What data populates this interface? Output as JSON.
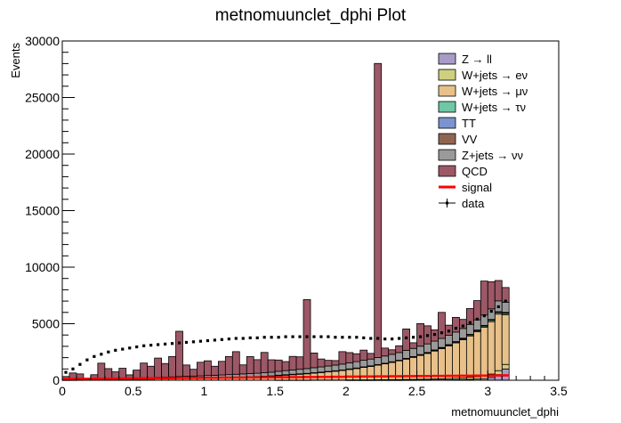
{
  "chart_data": {
    "type": "bar",
    "title": "metnomuunclet_dphi Plot",
    "xlabel": "metnomuunclet_dphi",
    "ylabel": "Events",
    "xlim": [
      0,
      3.5
    ],
    "ylim": [
      0,
      30000
    ],
    "x_ticks": [
      "0",
      "0.5",
      "1",
      "1.5",
      "2",
      "2.5",
      "3",
      "3.5"
    ],
    "y_ticks": [
      "0",
      "5000",
      "10000",
      "15000",
      "20000",
      "25000",
      "30000"
    ],
    "legend_position": "top-right",
    "bin_width": 0.05,
    "bins_lo": [
      0.0,
      0.05,
      0.1,
      0.15,
      0.2,
      0.25,
      0.3,
      0.35,
      0.4,
      0.45,
      0.5,
      0.55,
      0.6,
      0.65,
      0.7,
      0.75,
      0.8,
      0.85,
      0.9,
      0.95,
      1.0,
      1.05,
      1.1,
      1.15,
      1.2,
      1.25,
      1.3,
      1.35,
      1.4,
      1.45,
      1.5,
      1.55,
      1.6,
      1.65,
      1.7,
      1.75,
      1.8,
      1.85,
      1.9,
      1.95,
      2.0,
      2.05,
      2.1,
      2.15,
      2.2,
      2.25,
      2.3,
      2.35,
      2.4,
      2.45,
      2.5,
      2.55,
      2.6,
      2.65,
      2.7,
      2.75,
      2.8,
      2.85,
      2.9,
      2.95,
      3.0,
      3.05,
      3.1
    ],
    "series": [
      {
        "name": "Z → ll",
        "color": "#a89bc8",
        "values": [
          0,
          0,
          0,
          0,
          0,
          0,
          0,
          0,
          0,
          0,
          0,
          0,
          0,
          0,
          0,
          0,
          0,
          0,
          0,
          0,
          0,
          0,
          0,
          0,
          0,
          0,
          0,
          0,
          0,
          0,
          0,
          0,
          0,
          0,
          0,
          0,
          0,
          0,
          0,
          0,
          5,
          5,
          5,
          5,
          10,
          10,
          10,
          10,
          15,
          15,
          20,
          20,
          30,
          30,
          40,
          50,
          60,
          80,
          110,
          150,
          250,
          500,
          1000
        ]
      },
      {
        "name": "W+jets → eν",
        "color": "#cfcf80",
        "values": [
          0,
          0,
          0,
          0,
          0,
          0,
          0,
          0,
          0,
          0,
          0,
          0,
          0,
          0,
          0,
          0,
          0,
          0,
          0,
          0,
          0,
          0,
          0,
          0,
          0,
          0,
          0,
          0,
          0,
          0,
          10,
          10,
          10,
          10,
          10,
          20,
          20,
          20,
          20,
          20,
          25,
          25,
          30,
          30,
          35,
          40,
          45,
          50,
          55,
          60,
          65,
          75,
          85,
          100,
          115,
          130,
          150,
          180,
          210,
          250,
          300,
          350,
          400
        ]
      },
      {
        "name": "W+jets → μν",
        "color": "#e7c08a",
        "values": [
          10,
          15,
          20,
          25,
          30,
          40,
          50,
          55,
          60,
          70,
          80,
          90,
          100,
          110,
          120,
          130,
          150,
          160,
          170,
          180,
          200,
          210,
          230,
          250,
          270,
          290,
          310,
          330,
          360,
          390,
          420,
          460,
          500,
          540,
          580,
          630,
          680,
          740,
          800,
          870,
          940,
          1020,
          1110,
          1200,
          1300,
          1410,
          1530,
          1660,
          1800,
          1950,
          2110,
          2280,
          2470,
          2670,
          2890,
          3130,
          3380,
          3660,
          3960,
          4280,
          4630,
          5000,
          4400
        ]
      },
      {
        "name": "W+jets → τν",
        "color": "#6fc7a6",
        "values": [
          0,
          0,
          0,
          0,
          0,
          0,
          0,
          0,
          0,
          0,
          0,
          0,
          0,
          0,
          0,
          0,
          0,
          0,
          0,
          0,
          0,
          0,
          0,
          0,
          0,
          0,
          0,
          0,
          0,
          0,
          10,
          10,
          10,
          10,
          10,
          10,
          10,
          10,
          10,
          10,
          15,
          15,
          20,
          20,
          25,
          25,
          30,
          30,
          35,
          40,
          45,
          50,
          55,
          60,
          65,
          70,
          80,
          90,
          100,
          110,
          120,
          130,
          120
        ]
      },
      {
        "name": "TT",
        "color": "#7b93cf",
        "values": [
          0,
          0,
          0,
          0,
          0,
          0,
          0,
          0,
          0,
          0,
          0,
          0,
          0,
          0,
          0,
          0,
          0,
          0,
          0,
          0,
          0,
          0,
          0,
          0,
          0,
          0,
          0,
          0,
          0,
          0,
          5,
          5,
          5,
          5,
          5,
          5,
          5,
          5,
          5,
          5,
          10,
          10,
          10,
          10,
          10,
          10,
          10,
          10,
          15,
          15,
          15,
          15,
          20,
          20,
          20,
          20,
          25,
          25,
          30,
          30,
          35,
          40,
          40
        ]
      },
      {
        "name": "VV",
        "color": "#8f6552",
        "values": [
          0,
          0,
          0,
          0,
          0,
          0,
          0,
          0,
          0,
          0,
          0,
          0,
          0,
          0,
          0,
          0,
          0,
          0,
          0,
          0,
          0,
          0,
          0,
          0,
          0,
          0,
          0,
          0,
          0,
          0,
          5,
          5,
          5,
          5,
          5,
          5,
          5,
          5,
          5,
          5,
          10,
          10,
          10,
          10,
          10,
          10,
          10,
          10,
          15,
          15,
          15,
          15,
          20,
          20,
          20,
          20,
          25,
          25,
          30,
          30,
          35,
          40,
          40
        ]
      },
      {
        "name": "Z+jets → νν",
        "color": "#9a9a9a",
        "values": [
          20,
          30,
          40,
          50,
          60,
          70,
          80,
          90,
          100,
          110,
          120,
          130,
          140,
          150,
          160,
          170,
          180,
          190,
          200,
          210,
          220,
          230,
          240,
          250,
          260,
          270,
          280,
          290,
          300,
          320,
          340,
          360,
          380,
          400,
          420,
          440,
          460,
          480,
          500,
          520,
          540,
          560,
          580,
          600,
          620,
          640,
          660,
          680,
          700,
          720,
          740,
          760,
          780,
          800,
          820,
          840,
          860,
          880,
          900,
          920,
          940,
          960,
          900
        ]
      },
      {
        "name": "QCD",
        "color": "#9c5866",
        "values": [
          300,
          600,
          500,
          100,
          400,
          1400,
          900,
          600,
          900,
          300,
          700,
          1300,
          1000,
          1700,
          1200,
          1800,
          4000,
          1000,
          600,
          1200,
          1300,
          800,
          1200,
          1600,
          2000,
          800,
          1500,
          1200,
          1800,
          1100,
          1000,
          800,
          1200,
          1100,
          6100,
          1300,
          700,
          500,
          400,
          1100,
          900,
          700,
          900,
          500,
          26000,
          700,
          400,
          600,
          1900,
          500,
          2000,
          1600,
          1000,
          2300,
          900,
          1300,
          800,
          1400,
          1700,
          3000,
          2400,
          1800,
          1300
        ]
      }
    ],
    "signal": {
      "name": "signal",
      "color": "#ff0000",
      "values": [
        120,
        120,
        130,
        130,
        140,
        140,
        150,
        150,
        160,
        160,
        170,
        170,
        180,
        180,
        190,
        190,
        200,
        200,
        210,
        210,
        220,
        220,
        230,
        230,
        240,
        240,
        250,
        250,
        260,
        260,
        270,
        270,
        280,
        280,
        290,
        290,
        300,
        300,
        310,
        310,
        320,
        320,
        330,
        330,
        340,
        340,
        350,
        350,
        360,
        360,
        370,
        370,
        380,
        380,
        390,
        390,
        400,
        400,
        410,
        410,
        420,
        420,
        430
      ]
    },
    "data": {
      "name": "data",
      "values": [
        700,
        1000,
        1400,
        1800,
        2100,
        2300,
        2500,
        2650,
        2750,
        2850,
        2950,
        3050,
        3100,
        3150,
        3200,
        3250,
        3300,
        3350,
        3400,
        3450,
        3500,
        3550,
        3600,
        3650,
        3700,
        3700,
        3750,
        3750,
        3800,
        3800,
        3800,
        3850,
        3850,
        3850,
        3850,
        3850,
        3850,
        3850,
        3800,
        3800,
        3800,
        3800,
        3750,
        3700,
        3700,
        3650,
        3650,
        3700,
        3750,
        3800,
        3850,
        3950,
        4050,
        4200,
        4350,
        4600,
        4800,
        5100,
        5400,
        5700,
        6100,
        6500,
        7000
      ]
    }
  }
}
